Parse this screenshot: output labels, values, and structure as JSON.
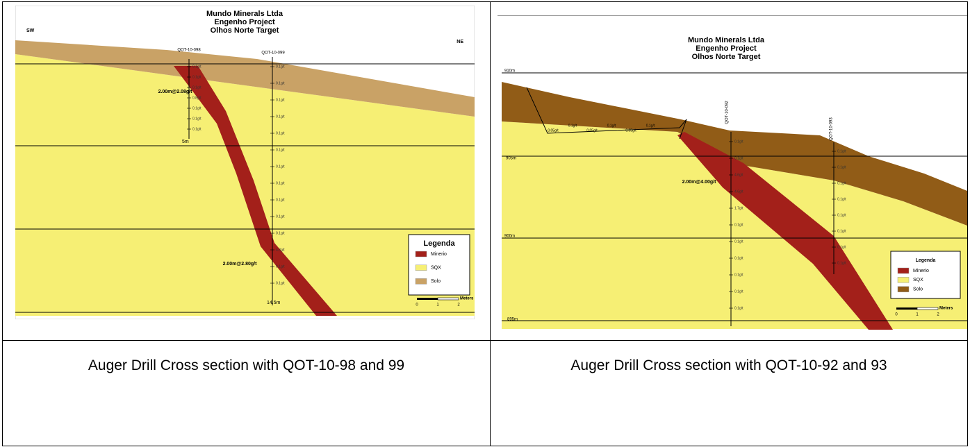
{
  "figures": [
    {
      "title": [
        "Mundo Minerals Ltda",
        "Engenho Project",
        "Olhos Norte Target"
      ],
      "directions": [
        "SW",
        "NE"
      ],
      "holes": [
        {
          "name": "QOT-10-098",
          "grades": [
            "0.1g/t",
            "0.1g/t",
            "0.1g/t",
            "0.8g/t",
            "0.1g/t",
            "0.1g/t",
            "0.1g/t"
          ]
        },
        {
          "name": "QOT-10-099",
          "grades": [
            "0.1g/t",
            "0.1g/t",
            "0.1g/t",
            "0.1g/t",
            "0.1g/t",
            "0.1g/t",
            "0.1g/t",
            "0.1g/t",
            "0.1g/t",
            "0.1g/t",
            "0.1g/t",
            "4.8g/t",
            "0.1g/t",
            "0.1g/t"
          ]
        }
      ],
      "intercepts": [
        "2.00m@2.08g/t",
        "2.00m@2.80g/t"
      ],
      "depths": [
        "5m",
        "14.5m"
      ],
      "legend": {
        "title": "Legenda",
        "items": [
          "Minerio",
          "SQX",
          "Solo"
        ]
      },
      "scale": {
        "ticks": [
          "0",
          "1",
          "2"
        ],
        "unit": "Meters"
      },
      "caption": "Auger Drill Cross section with QOT-10-98 and 99"
    },
    {
      "title": [
        "Mundo Minerals Ltda",
        "Engenho Project",
        "Olhos Norte Target"
      ],
      "elevations": [
        "910m",
        "905m",
        "900m",
        "895m"
      ],
      "surface_samples": [
        "0.05g/t",
        "0.1g/t",
        "0.05g/t",
        "0.1g/t",
        "0.05g/t",
        "0.1g/t"
      ],
      "holes": [
        {
          "name": "QOT-10-092",
          "grades": [
            "0.1g/t",
            "0.1g/t",
            "4.6g/t",
            "4.6g/t",
            "1.7g/t",
            "0.1g/t",
            "0.1g/t",
            "0.1g/t",
            "0.1g/t",
            "0.1g/t",
            "0.1g/t"
          ]
        },
        {
          "name": "QOT-10-093",
          "grades": [
            "0.1g/t",
            "0.1g/t",
            "0.1g/t",
            "0.1g/t",
            "0.1g/t",
            "0.1g/t",
            "0.1g/t",
            "0.1g/t"
          ]
        }
      ],
      "intercepts": [
        "2.00m@4.00g/t"
      ],
      "legend": {
        "title": "Legenda",
        "items": [
          "Minerio",
          "SQX",
          "Solo"
        ]
      },
      "scale": {
        "ticks": [
          "0",
          "1",
          "2"
        ],
        "unit": "Meters"
      },
      "caption": "Auger Drill Cross section with QOT-10-92 and 93"
    }
  ]
}
